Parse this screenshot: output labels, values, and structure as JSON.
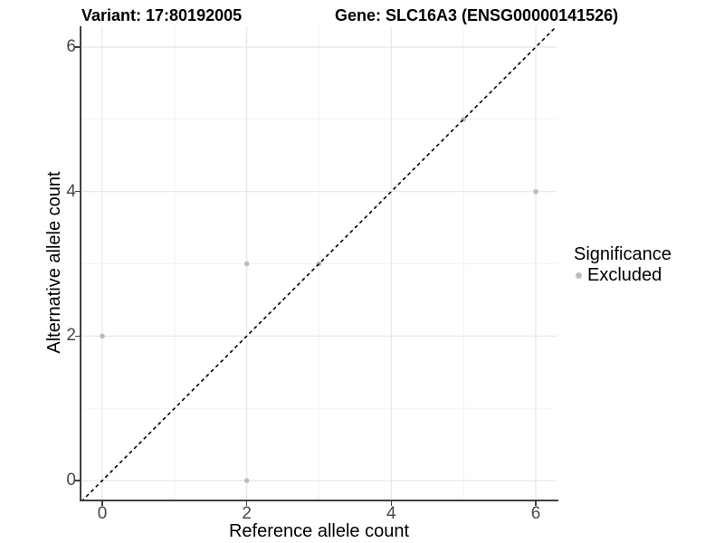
{
  "header": {
    "title_left": "Variant: 17:80192005",
    "title_right": "Gene: SLC16A3 (ENSG00000141526)"
  },
  "legend": {
    "title": "Significance",
    "items": [
      {
        "label": "Excluded",
        "color": "#bcbcbc"
      }
    ]
  },
  "chart_data": {
    "type": "scatter",
    "title": "Variant: 17:80192005 — Gene: SLC16A3 (ENSG00000141526)",
    "xlabel": "Reference allele count",
    "ylabel": "Alternative allele count",
    "xlim": [
      -0.29,
      6.29
    ],
    "ylim": [
      -0.29,
      6.29
    ],
    "x_ticks": [
      0,
      2,
      4,
      6
    ],
    "y_ticks": [
      0,
      2,
      4,
      6
    ],
    "x_minor_ticks": [
      1,
      3,
      5
    ],
    "y_minor_ticks": [
      1,
      3,
      5
    ],
    "grid": "major+minor",
    "legend_position": "right",
    "series": [
      {
        "name": "Excluded",
        "color": "#bcbcbc",
        "point_radius": 2.8,
        "points": [
          [
            0,
            2
          ],
          [
            2,
            0
          ],
          [
            2,
            3
          ],
          [
            3,
            3
          ],
          [
            5,
            5
          ],
          [
            6,
            4
          ]
        ]
      }
    ],
    "reference_line": {
      "type": "identity",
      "slope": 1,
      "intercept": 0,
      "style": "dashed",
      "color": "#000000"
    },
    "colors": {
      "major_grid": "#e6e6e6",
      "minor_grid": "#f2f2f2",
      "axis_line": "#3f3f3f",
      "tick_text": "#474747"
    }
  }
}
